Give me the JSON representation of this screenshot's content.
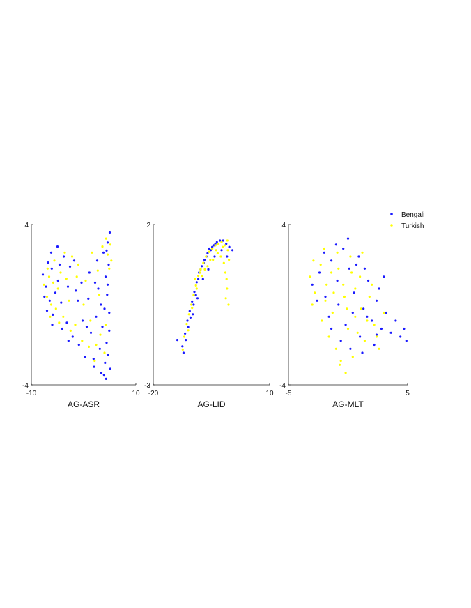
{
  "colors": {
    "Bengali": "#1a1aff",
    "Turkish": "#ffff00"
  },
  "legend": {
    "placement": "top-right",
    "entries": [
      "Bengali",
      "Turkish"
    ]
  },
  "chart_data": [
    {
      "type": "scatter",
      "xlabel": "AG-ASR",
      "xlim": [
        -10,
        10
      ],
      "ylim": [
        -4,
        4
      ],
      "xticks": [
        "-10",
        "10"
      ],
      "yticks": [
        "-4",
        "4"
      ],
      "grid": false,
      "series": [
        {
          "name": "Bengali",
          "points": [
            [
              -7.8,
              1.5
            ],
            [
              -7.2,
              0.9
            ],
            [
              -6.5,
              0.2
            ],
            [
              -6.1,
              1.8
            ],
            [
              -5.4,
              0.6
            ],
            [
              -7.0,
              -0.3
            ],
            [
              -6.8,
              2.1
            ],
            [
              -5.9,
              -0.5
            ],
            [
              -4.9,
              1.2
            ],
            [
              -4.3,
              0.1
            ],
            [
              -3.8,
              2.4
            ],
            [
              -3.2,
              -0.9
            ],
            [
              -2.6,
              1.9
            ],
            [
              -2.1,
              -1.6
            ],
            [
              -1.5,
              0.7
            ],
            [
              -0.9,
              -2.0
            ],
            [
              -0.4,
              1.1
            ],
            [
              0.3,
              -2.6
            ],
            [
              0.9,
              0.3
            ],
            [
              1.4,
              -1.4
            ],
            [
              2.0,
              -3.1
            ],
            [
              2.4,
              -0.6
            ],
            [
              2.8,
              0.8
            ],
            [
              3.1,
              -2.2
            ],
            [
              3.4,
              -3.4
            ],
            [
              3.6,
              -1.1
            ],
            [
              3.8,
              2.6
            ],
            [
              4.0,
              -0.2
            ],
            [
              4.1,
              -2.9
            ],
            [
              4.2,
              1.4
            ],
            [
              4.3,
              -3.7
            ],
            [
              4.4,
              -1.9
            ],
            [
              4.5,
              0.5
            ],
            [
              4.6,
              3.1
            ],
            [
              4.7,
              -2.5
            ],
            [
              4.8,
              2.0
            ],
            [
              4.9,
              -1.3
            ],
            [
              5.0,
              3.6
            ],
            [
              5.1,
              -3.2
            ],
            [
              4.6,
              1.0
            ],
            [
              -6.2,
              2.6
            ],
            [
              -5.0,
              2.9
            ],
            [
              -4.1,
              -1.2
            ],
            [
              -3.0,
              0.9
            ],
            [
              -1.8,
              2.2
            ],
            [
              -0.2,
              -0.8
            ],
            [
              1.1,
              1.6
            ],
            [
              1.9,
              -2.7
            ],
            [
              2.6,
              2.2
            ],
            [
              3.3,
              0.0
            ],
            [
              -7.5,
              0.4
            ],
            [
              -6.0,
              -1.0
            ],
            [
              -4.6,
              2.0
            ],
            [
              -2.9,
              -1.8
            ],
            [
              -1.1,
              0.2
            ],
            [
              0.6,
              -1.1
            ],
            [
              2.2,
              1.1
            ],
            [
              3.9,
              -3.5
            ],
            [
              4.4,
              2.7
            ],
            [
              4.9,
              -0.4
            ]
          ]
        },
        {
          "name": "Turkish",
          "points": [
            [
              -7.6,
              1.0
            ],
            [
              -7.0,
              0.4
            ],
            [
              -6.6,
              1.4
            ],
            [
              -6.2,
              0.0
            ],
            [
              -5.8,
              1.1
            ],
            [
              -5.3,
              -0.2
            ],
            [
              -4.9,
              0.8
            ],
            [
              -4.4,
              1.6
            ],
            [
              -3.9,
              -0.6
            ],
            [
              -3.3,
              1.3
            ],
            [
              -2.8,
              0.2
            ],
            [
              -2.2,
              2.4
            ],
            [
              -1.6,
              -1.0
            ],
            [
              -1.0,
              2.0
            ],
            [
              -0.3,
              -1.8
            ],
            [
              0.4,
              1.2
            ],
            [
              1.0,
              -2.1
            ],
            [
              1.6,
              2.6
            ],
            [
              2.1,
              -2.8
            ],
            [
              2.7,
              1.7
            ],
            [
              3.2,
              -1.5
            ],
            [
              3.6,
              2.9
            ],
            [
              4.0,
              -2.4
            ],
            [
              4.3,
              3.3
            ],
            [
              4.6,
              2.5
            ],
            [
              4.9,
              1.8
            ],
            [
              5.1,
              3.0
            ],
            [
              5.3,
              2.2
            ],
            [
              4.2,
              -1.0
            ],
            [
              3.0,
              0.5
            ],
            [
              -6.9,
              1.8
            ],
            [
              -6.4,
              -0.6
            ],
            [
              -5.6,
              2.2
            ],
            [
              -4.7,
              -0.9
            ],
            [
              -3.6,
              2.6
            ],
            [
              -2.5,
              -1.3
            ],
            [
              -1.3,
              1.4
            ],
            [
              0.0,
              0.0
            ],
            [
              1.3,
              -0.8
            ],
            [
              2.4,
              -2.0
            ]
          ]
        }
      ]
    },
    {
      "type": "scatter",
      "xlabel": "AG-LID",
      "xlim": [
        -20,
        10
      ],
      "ylim": [
        -3,
        2
      ],
      "xticks": [
        "-20",
        "10"
      ],
      "yticks": [
        "-3",
        "2"
      ],
      "grid": false,
      "series": [
        {
          "name": "Bengali",
          "points": [
            [
              -12.5,
              -1.8
            ],
            [
              -11.8,
              -1.4
            ],
            [
              -11.2,
              -1.0
            ],
            [
              -10.6,
              -0.7
            ],
            [
              -10.0,
              -0.4
            ],
            [
              -9.4,
              -0.1
            ],
            [
              -8.8,
              0.2
            ],
            [
              -8.2,
              0.5
            ],
            [
              -7.5,
              0.7
            ],
            [
              -6.8,
              0.9
            ],
            [
              -6.0,
              1.1
            ],
            [
              -5.2,
              1.2
            ],
            [
              -4.4,
              1.35
            ],
            [
              -3.6,
              1.45
            ],
            [
              -2.8,
              1.5
            ],
            [
              -2.0,
              1.5
            ],
            [
              -1.2,
              1.4
            ],
            [
              -0.4,
              1.3
            ],
            [
              0.4,
              1.2
            ],
            [
              -11.0,
              -1.2
            ],
            [
              -10.4,
              -0.9
            ],
            [
              -9.6,
              -0.5
            ],
            [
              -9.0,
              -0.2
            ],
            [
              -8.4,
              0.3
            ],
            [
              -7.8,
              0.6
            ],
            [
              -7.0,
              0.8
            ],
            [
              -6.3,
              1.0
            ],
            [
              -5.6,
              1.25
            ],
            [
              -4.8,
              1.3
            ],
            [
              -4.0,
              1.4
            ],
            [
              -13.8,
              -1.6
            ],
            [
              -12.2,
              -2.0
            ],
            [
              -11.6,
              -1.6
            ],
            [
              -9.8,
              -0.8
            ],
            [
              -8.6,
              -0.3
            ],
            [
              -7.2,
              0.3
            ],
            [
              -5.8,
              0.6
            ],
            [
              -4.2,
              1.0
            ],
            [
              -2.4,
              1.2
            ],
            [
              -1.0,
              1.0
            ]
          ]
        },
        {
          "name": "Turkish",
          "points": [
            [
              -12.0,
              -1.5
            ],
            [
              -11.4,
              -1.1
            ],
            [
              -10.8,
              -0.8
            ],
            [
              -10.2,
              -0.5
            ],
            [
              -9.6,
              -0.2
            ],
            [
              -9.0,
              0.1
            ],
            [
              -8.4,
              0.4
            ],
            [
              -7.8,
              0.6
            ],
            [
              -7.1,
              0.8
            ],
            [
              -6.4,
              1.0
            ],
            [
              -5.6,
              1.15
            ],
            [
              -4.8,
              1.25
            ],
            [
              -4.0,
              1.35
            ],
            [
              -3.2,
              1.4
            ],
            [
              -2.4,
              1.45
            ],
            [
              -1.6,
              1.35
            ],
            [
              -0.8,
              1.2
            ],
            [
              -1.4,
              0.5
            ],
            [
              -1.0,
              0.0
            ],
            [
              -0.6,
              -0.5
            ],
            [
              -1.8,
              0.8
            ],
            [
              -2.6,
              1.0
            ],
            [
              -3.4,
              1.1
            ],
            [
              -4.6,
              0.9
            ],
            [
              -6.0,
              0.7
            ],
            [
              -7.4,
              0.4
            ],
            [
              -8.8,
              0.0
            ],
            [
              -10.0,
              -0.6
            ],
            [
              -11.0,
              -1.3
            ],
            [
              -12.4,
              -1.9
            ],
            [
              -9.2,
              0.3
            ],
            [
              -7.9,
              0.5
            ],
            [
              -6.7,
              0.6
            ],
            [
              -5.3,
              0.9
            ],
            [
              -3.8,
              1.2
            ],
            [
              -2.1,
              1.3
            ],
            [
              -0.5,
              0.9
            ],
            [
              -1.3,
              -0.3
            ],
            [
              -1.1,
              0.3
            ],
            [
              -0.9,
              1.5
            ]
          ]
        }
      ]
    },
    {
      "type": "scatter",
      "xlabel": "AG-MLT",
      "xlim": [
        -5,
        5
      ],
      "ylim": [
        -4,
        4
      ],
      "xticks": [
        "-5",
        "5"
      ],
      "yticks": [
        "-4",
        "4"
      ],
      "grid": false,
      "series": [
        {
          "name": "Bengali",
          "points": [
            [
              -3.0,
              1.0
            ],
            [
              -2.4,
              1.6
            ],
            [
              -1.9,
              0.4
            ],
            [
              -1.4,
              2.2
            ],
            [
              -0.9,
              1.2
            ],
            [
              -0.4,
              2.8
            ],
            [
              0.1,
              1.8
            ],
            [
              0.5,
              0.6
            ],
            [
              0.9,
              2.4
            ],
            [
              1.3,
              -0.2
            ],
            [
              1.7,
              1.2
            ],
            [
              2.0,
              -0.8
            ],
            [
              2.4,
              0.2
            ],
            [
              2.8,
              -1.2
            ],
            [
              3.2,
              -0.4
            ],
            [
              3.6,
              -1.4
            ],
            [
              4.0,
              -0.8
            ],
            [
              4.4,
              -1.6
            ],
            [
              4.7,
              -1.2
            ],
            [
              4.9,
              -1.8
            ],
            [
              -2.6,
              0.2
            ],
            [
              -1.6,
              -0.6
            ],
            [
              -0.8,
              0.0
            ],
            [
              -0.2,
              -1.0
            ],
            [
              0.4,
              -0.4
            ],
            [
              1.0,
              -1.6
            ],
            [
              1.6,
              -0.6
            ],
            [
              2.2,
              -2.0
            ],
            [
              2.6,
              0.8
            ],
            [
              3.0,
              1.4
            ],
            [
              -2.0,
              2.6
            ],
            [
              -1.0,
              3.0
            ],
            [
              0.0,
              3.3
            ],
            [
              0.7,
              2.0
            ],
            [
              1.4,
              1.8
            ],
            [
              -0.6,
              -1.8
            ],
            [
              0.2,
              -2.2
            ],
            [
              1.2,
              -2.4
            ],
            [
              -1.4,
              -1.2
            ],
            [
              2.4,
              -1.5
            ]
          ]
        },
        {
          "name": "Turkish",
          "points": [
            [
              -3.2,
              1.4
            ],
            [
              -2.8,
              0.6
            ],
            [
              -2.3,
              2.0
            ],
            [
              -1.8,
              1.0
            ],
            [
              -1.3,
              -0.4
            ],
            [
              -0.8,
              1.8
            ],
            [
              -0.3,
              0.4
            ],
            [
              0.2,
              2.4
            ],
            [
              0.6,
              -0.6
            ],
            [
              1.0,
              1.4
            ],
            [
              1.4,
              -1.8
            ],
            [
              1.8,
              0.4
            ],
            [
              2.2,
              -1.0
            ],
            [
              2.6,
              -2.2
            ],
            [
              3.0,
              -0.4
            ],
            [
              -2.2,
              -0.8
            ],
            [
              -1.6,
              -1.6
            ],
            [
              -1.0,
              -2.2
            ],
            [
              -0.6,
              -2.8
            ],
            [
              -0.2,
              -3.4
            ],
            [
              0.4,
              -2.6
            ],
            [
              0.8,
              -1.4
            ],
            [
              -2.9,
              2.2
            ],
            [
              -2.0,
              2.8
            ],
            [
              -1.2,
              0.6
            ],
            [
              -0.4,
              1.0
            ],
            [
              0.0,
              -1.2
            ],
            [
              0.6,
              0.8
            ],
            [
              1.2,
              2.6
            ],
            [
              1.6,
              -0.8
            ],
            [
              -1.9,
              0.2
            ],
            [
              -1.4,
              1.6
            ],
            [
              -0.9,
              2.6
            ],
            [
              -0.1,
              -0.2
            ],
            [
              0.3,
              1.6
            ],
            [
              1.1,
              -0.2
            ],
            [
              2.0,
              1.0
            ],
            [
              2.4,
              -1.6
            ],
            [
              -3.0,
              0.0
            ],
            [
              -0.7,
              -3.0
            ]
          ]
        }
      ]
    }
  ]
}
